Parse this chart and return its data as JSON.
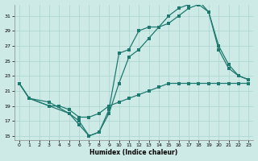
{
  "xlabel": "Humidex (Indice chaleur)",
  "bg_color": "#ceeae7",
  "grid_color": "#aad4d0",
  "line_color": "#1e7a6e",
  "xlim": [
    -0.5,
    23.5
  ],
  "ylim": [
    14.5,
    32.5
  ],
  "xticks": [
    0,
    1,
    2,
    3,
    4,
    5,
    6,
    7,
    8,
    9,
    10,
    11,
    12,
    13,
    14,
    15,
    16,
    17,
    18,
    19,
    20,
    21,
    22,
    23
  ],
  "yticks": [
    15,
    17,
    19,
    21,
    23,
    25,
    27,
    29,
    31
  ],
  "line1_x": [
    0,
    1,
    3,
    4,
    5,
    6,
    7,
    8,
    9,
    10,
    11,
    12,
    13,
    14,
    15,
    16,
    17,
    18,
    19,
    20,
    21,
    22,
    23
  ],
  "line1_y": [
    22,
    20,
    19,
    19,
    18.5,
    17.5,
    17.5,
    18,
    19,
    19.5,
    20,
    20.5,
    21,
    21.5,
    22,
    22,
    22,
    22,
    22,
    22,
    22,
    22,
    22
  ],
  "line2_x": [
    0,
    1,
    3,
    5,
    6,
    7,
    8,
    9,
    10,
    11,
    12,
    13,
    14,
    15,
    16,
    17,
    18,
    19,
    20,
    21,
    22,
    23
  ],
  "line2_y": [
    22,
    20,
    19,
    18,
    16.5,
    15,
    15.5,
    18,
    22,
    25.5,
    26.5,
    28,
    29.5,
    31,
    32,
    32.5,
    33,
    31.5,
    27,
    24.5,
    23,
    22.5
  ],
  "line3_x": [
    0,
    1,
    3,
    5,
    6,
    7,
    8,
    9,
    10,
    11,
    12,
    13,
    14,
    15,
    16,
    17,
    18,
    19,
    20,
    21,
    22,
    23
  ],
  "line3_y": [
    22,
    20,
    19.5,
    18,
    17,
    15,
    15.5,
    18.5,
    26,
    26.5,
    29,
    29.5,
    29.5,
    30,
    31,
    32,
    32.5,
    31.5,
    26.5,
    24,
    23,
    22.5
  ]
}
